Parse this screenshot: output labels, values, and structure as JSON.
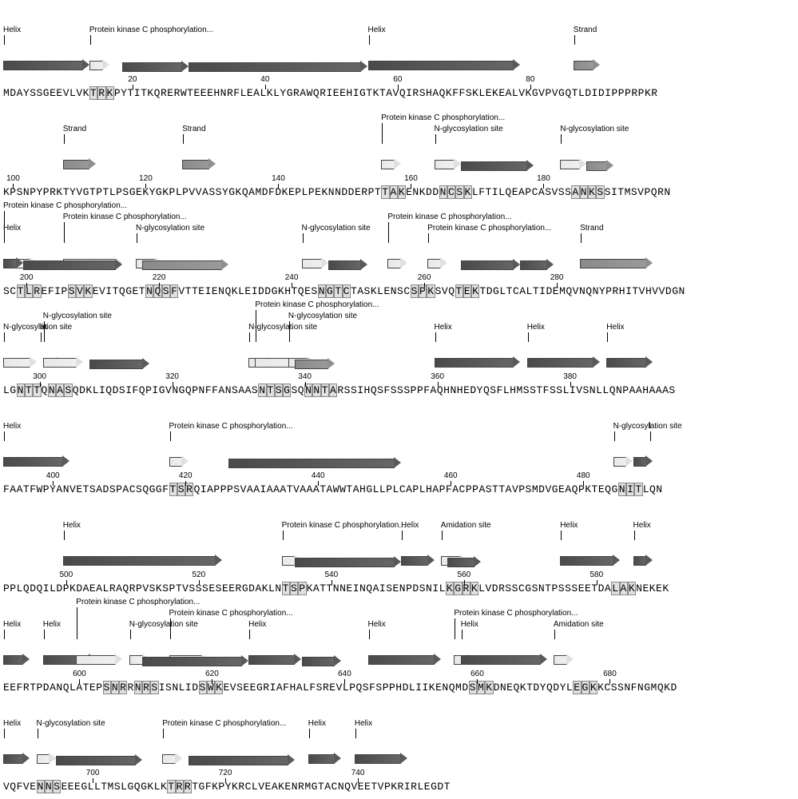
{
  "colors": {
    "dark": "#595959",
    "med": "#8f8f8f",
    "light": "#e0e0e0",
    "bg": "#ffffff"
  },
  "char_width": 8.3,
  "rows": [
    {
      "start": 1,
      "sequence": "MDAYSSGEEVLVKTRKPYTITKQRERWTEEEHNRFLEALKLYGRAWQRIEEHIGTKTAVQIRSHAQKFFSKLEKEALVKGVPVGQTLDIDIPPPRPKR",
      "highlights": [
        {
          "from": 14,
          "to": 16
        }
      ],
      "ticks": [
        20,
        40,
        60,
        80
      ],
      "annotations": [
        {
          "type": "Helix",
          "from": 1,
          "to": 13,
          "arrow": "dark",
          "label": "Helix",
          "level": 0
        },
        {
          "type": "PKC",
          "from": 14,
          "to": 16,
          "arrow": "light",
          "label": "Protein kinase C phosphorylation...",
          "level": 0
        },
        {
          "type": "Helix",
          "from": 19,
          "to": 28,
          "arrow": "dark",
          "label": "",
          "level": 1
        },
        {
          "type": "Helix",
          "from": 29,
          "to": 55,
          "arrow": "dark",
          "label": "",
          "level": 1
        },
        {
          "type": "Helix",
          "from": 56,
          "to": 78,
          "arrow": "dark",
          "label": "Helix",
          "level": 0
        },
        {
          "type": "Strand",
          "from": 87,
          "to": 90,
          "arrow": "med",
          "label": "Strand",
          "level": 0
        }
      ]
    },
    {
      "start": 99,
      "sequence": "KPSNPYPRKTYVGTPTLPSGEKYGKPLPVVASSYGKQAMDFDKEPLPEKNNDDERPTTAKENKDDNCSKLFTILQEAPCASVSSANKSSITMSVPQRN",
      "highlights": [
        {
          "from": 156,
          "to": 158
        },
        {
          "from": 164,
          "to": 167
        },
        {
          "from": 183,
          "to": 186
        }
      ],
      "ticks": [
        100,
        120,
        140,
        160,
        180
      ],
      "annotations": [
        {
          "type": "Strand",
          "from": 108,
          "to": 112,
          "arrow": "med",
          "label": "Strand",
          "level": 0
        },
        {
          "type": "Strand",
          "from": 126,
          "to": 130,
          "arrow": "med",
          "label": "Strand",
          "level": 0
        },
        {
          "type": "PKC",
          "from": 156,
          "to": 158,
          "arrow": "light",
          "label": "Protein kinase C phosphorylation...",
          "level": -1
        },
        {
          "type": "Nglyc",
          "from": 164,
          "to": 167,
          "arrow": "light",
          "label": "N-glycosylation site",
          "level": 0
        },
        {
          "type": "Helix",
          "from": 168,
          "to": 178,
          "arrow": "dark",
          "label": "",
          "level": 1
        },
        {
          "type": "Nglyc",
          "from": 183,
          "to": 186,
          "arrow": "light",
          "label": "N-glycosylation site",
          "level": 0
        },
        {
          "type": "Strand",
          "from": 187,
          "to": 190,
          "arrow": "med",
          "label": "",
          "level": 1
        }
      ]
    },
    {
      "start": 197,
      "sequence": "SCTLREFIPSVKEVITQGETNQSFVTTEIENQKLEIDDGKHTQESNGTCTASKLENSCSPKSVQTEKTDGLTCALTIDEMQVNQNYPRHITVHVVDGN",
      "highlights": [
        {
          "from": 199,
          "to": 201
        },
        {
          "from": 206,
          "to": 208
        },
        {
          "from": 217,
          "to": 220
        },
        {
          "from": 242,
          "to": 245
        },
        {
          "from": 255,
          "to": 257
        },
        {
          "from": 261,
          "to": 263
        }
      ],
      "ticks": [
        200,
        220,
        240,
        260,
        280
      ],
      "annotations": [
        {
          "type": "PKC",
          "from": 197,
          "to": 201,
          "arrow": "light",
          "label": "Protein kinase C phosphorylation...",
          "level": -2
        },
        {
          "type": "Helix",
          "from": 197,
          "to": 199,
          "arrow": "dark",
          "label": "Helix",
          "level": 0
        },
        {
          "type": "PKC",
          "from": 206,
          "to": 214,
          "arrow": "light",
          "label": "Protein kinase C phosphorylation...",
          "level": -1
        },
        {
          "type": "Helix",
          "from": 200,
          "to": 214,
          "arrow": "dark",
          "label": "",
          "level": 1
        },
        {
          "type": "Nglyc",
          "from": 217,
          "to": 220,
          "arrow": "light",
          "label": "N-glycosylation site",
          "level": 0
        },
        {
          "type": "Helix",
          "from": 218,
          "to": 230,
          "arrow": "med",
          "label": "",
          "level": 1
        },
        {
          "type": "Nglyc",
          "from": 242,
          "to": 245,
          "arrow": "light",
          "label": "N-glycosylation site",
          "level": 0
        },
        {
          "type": "Helix",
          "from": 246,
          "to": 251,
          "arrow": "dark",
          "label": "",
          "level": 1
        },
        {
          "type": "PKC",
          "from": 255,
          "to": 257,
          "arrow": "light",
          "label": "Protein kinase C phosphorylation...",
          "level": -1
        },
        {
          "type": "PKC",
          "from": 261,
          "to": 263,
          "arrow": "light",
          "label": "Protein kinase C phosphorylation...",
          "level": 0
        },
        {
          "type": "Helix",
          "from": 266,
          "to": 274,
          "arrow": "dark",
          "label": "",
          "level": 1
        },
        {
          "type": "Helix",
          "from": 275,
          "to": 279,
          "arrow": "dark",
          "label": "",
          "level": 1
        },
        {
          "type": "Strand",
          "from": 284,
          "to": 294,
          "arrow": "med",
          "label": "Strand",
          "level": 0
        }
      ]
    },
    {
      "start": 295,
      "sequence": "LGNTTQNASQDKLIQDSIFQPIGVNGQPNFFANSAASNTSGSQNNTARSSIHQSFSSSPPFAQHNHEDYQSFLHMSSTFSSLIVSNLLQNPAAHAAAS",
      "highlights": [
        {
          "from": 297,
          "to": 299
        },
        {
          "from": 301,
          "to": 303
        },
        {
          "from": 332,
          "to": 335
        },
        {
          "from": 338,
          "to": 341
        }
      ],
      "ticks": [
        300,
        320,
        340,
        360,
        380
      ],
      "annotations": [
        {
          "type": "Nglyc",
          "from": 295,
          "to": 299,
          "arrow": "light",
          "label": "N-glycosylation site",
          "level": 0
        },
        {
          "type": "Nglyc",
          "from": 301,
          "to": 303,
          "arrow": "light",
          "label": "N-glycosylation site",
          "level": -1
        },
        {
          "type": "Helix",
          "from": 301,
          "to": 306,
          "arrow": "light",
          "label": "lix",
          "level": 0,
          "label_off": -4
        },
        {
          "type": "Helix",
          "from": 308,
          "to": 316,
          "arrow": "dark",
          "label": "",
          "level": 1
        },
        {
          "type": "Nglyc",
          "from": 332,
          "to": 335,
          "arrow": "light",
          "label": "N-glycosylation site",
          "level": 0
        },
        {
          "type": "PKC",
          "from": 333,
          "to": 341,
          "arrow": "light",
          "label": "Protein kinase C phosphorylation...",
          "level": -2
        },
        {
          "type": "Nglyc",
          "from": 338,
          "to": 341,
          "arrow": "light",
          "label": "N-glycosylation site",
          "level": -1
        },
        {
          "type": "Helix",
          "from": 339,
          "to": 344,
          "arrow": "med",
          "label": "",
          "level": 1
        },
        {
          "type": "Helix",
          "from": 360,
          "to": 372,
          "arrow": "dark",
          "label": "Helix",
          "level": 0
        },
        {
          "type": "Helix",
          "from": 374,
          "to": 384,
          "arrow": "dark",
          "label": "Helix",
          "level": 0
        },
        {
          "type": "Helix",
          "from": 386,
          "to": 392,
          "arrow": "dark",
          "label": "Helix",
          "level": 0
        }
      ]
    },
    {
      "start": 393,
      "sequence": "FAATFWPYANVETSADSPACSQGGFTSRQIAPPPSVAAIAAATVAAATAWWTAHGLLPLCAPLHAPFACPPASTTAVPSMDVGEAQPKTEQGNITLQN",
      "highlights": [
        {
          "from": 418,
          "to": 420
        },
        {
          "from": 485,
          "to": 487
        }
      ],
      "ticks": [
        400,
        420,
        440,
        460,
        480
      ],
      "annotations": [
        {
          "type": "Helix",
          "from": 393,
          "to": 402,
          "arrow": "dark",
          "label": "Helix",
          "level": 0
        },
        {
          "type": "PKC",
          "from": 418,
          "to": 420,
          "arrow": "light",
          "label": "Protein kinase C phosphorylation...",
          "level": 0
        },
        {
          "type": "Helix",
          "from": 427,
          "to": 452,
          "arrow": "dark",
          "label": "",
          "level": 1
        },
        {
          "type": "Nglyc",
          "from": 485,
          "to": 487,
          "arrow": "light",
          "label": "N-glycosylation site",
          "level": 0
        },
        {
          "type": "Helix",
          "from": 488,
          "to": 490,
          "arrow": "dark",
          "label": "l",
          "level": 0,
          "label_off": 20
        }
      ]
    },
    {
      "start": 491,
      "sequence": "PPLQDQILDPKDAEALRAQRPVSKSPTVSSSESEERGDAKLNTSPKATTNNEINQAISENPDSNILKGRKLVDRSSCGSNTPSSSEETDALAKNEKEK",
      "highlights": [
        {
          "from": 533,
          "to": 535
        },
        {
          "from": 557,
          "to": 560
        },
        {
          "from": 581,
          "to": 583
        }
      ],
      "ticks": [
        500,
        520,
        540,
        560,
        580
      ],
      "annotations": [
        {
          "type": "Helix",
          "from": 500,
          "to": 523,
          "arrow": "dark",
          "label": "Helix",
          "level": 0
        },
        {
          "type": "PKC",
          "from": 533,
          "to": 535,
          "arrow": "light",
          "label": "Protein kinase C phosphorylation...",
          "level": 0
        },
        {
          "type": "Helix",
          "from": 535,
          "to": 550,
          "arrow": "dark",
          "label": "",
          "level": 1
        },
        {
          "type": "Helix",
          "from": 551,
          "to": 555,
          "arrow": "dark",
          "label": "Helix",
          "level": 0
        },
        {
          "type": "Amid",
          "from": 557,
          "to": 560,
          "arrow": "light",
          "label": "Amidation site",
          "level": 0
        },
        {
          "type": "Helix",
          "from": 558,
          "to": 562,
          "arrow": "dark",
          "label": "",
          "level": 1
        },
        {
          "type": "Helix",
          "from": 575,
          "to": 583,
          "arrow": "dark",
          "label": "Helix",
          "level": 0
        },
        {
          "type": "Helix",
          "from": 586,
          "to": 588,
          "arrow": "dark",
          "label": "Helix",
          "level": 0
        }
      ]
    },
    {
      "start": 589,
      "sequence": "EEFRTPDANQLATEPSNRRNRSISNLIDSWKEVSEEGRIAFHALFSREVLPQSFSPPHDLIIKENQMDSMKDNEQKTDYQDYLEGKKCSSNFNGMQKD",
      "highlights": [
        {
          "from": 604,
          "to": 606
        },
        {
          "from": 608,
          "to": 610
        },
        {
          "from": 617,
          "to": 619
        },
        {
          "from": 657,
          "to": 659
        },
        {
          "from": 672,
          "to": 674
        }
      ],
      "ticks": [
        600,
        620,
        640,
        660,
        680
      ],
      "annotations": [
        {
          "type": "Helix",
          "from": 589,
          "to": 592,
          "arrow": "dark",
          "label": "Helix",
          "level": 0
        },
        {
          "type": "Helix",
          "from": 595,
          "to": 602,
          "arrow": "dark",
          "label": "Helix",
          "level": 0
        },
        {
          "type": "PKC",
          "from": 600,
          "to": 606,
          "arrow": "light",
          "label": "Protein kinase C phosphorylation...",
          "level": -2
        },
        {
          "type": "Nglyc",
          "from": 608,
          "to": 610,
          "arrow": "light",
          "label": "N-glycosylation site",
          "level": 0
        },
        {
          "type": "PKC",
          "from": 614,
          "to": 619,
          "arrow": "light",
          "label": "Protein kinase C phosphorylation...",
          "level": -1
        },
        {
          "type": "Helix",
          "from": 610,
          "to": 625,
          "arrow": "dark",
          "label": "",
          "level": 1
        },
        {
          "type": "Helix",
          "from": 626,
          "to": 633,
          "arrow": "dark",
          "label": "Helix",
          "level": 0
        },
        {
          "type": "Helix",
          "from": 634,
          "to": 639,
          "arrow": "dark",
          "label": "",
          "level": 1
        },
        {
          "type": "Helix",
          "from": 644,
          "to": 654,
          "arrow": "dark",
          "label": "Helix",
          "level": 0
        },
        {
          "type": "PKC",
          "from": 657,
          "to": 659,
          "arrow": "light",
          "label": "Protein kinase C phosphorylation...",
          "level": -1
        },
        {
          "type": "Helix",
          "from": 658,
          "to": 670,
          "arrow": "dark",
          "label": "Helix",
          "level": 0
        },
        {
          "type": "Amid",
          "from": 672,
          "to": 674,
          "arrow": "light",
          "label": "Amidation site",
          "level": 0
        }
      ]
    },
    {
      "start": 687,
      "sequence": "VQFVENNSEEEGLLTMSLGQGKLKTRRTGFKPYKRCLVEAKENRMGTACNQVEETVPKRIRLEGDT",
      "highlights": [
        {
          "from": 692,
          "to": 694
        },
        {
          "from": 711,
          "to": 713
        }
      ],
      "ticks": [
        700,
        720,
        740
      ],
      "annotations": [
        {
          "type": "Helix",
          "from": 687,
          "to": 690,
          "arrow": "dark",
          "label": "Helix",
          "level": 0
        },
        {
          "type": "Nglyc",
          "from": 692,
          "to": 694,
          "arrow": "light",
          "label": "N-glycosylation site",
          "level": 0
        },
        {
          "type": "Helix",
          "from": 695,
          "to": 707,
          "arrow": "dark",
          "label": "",
          "level": 1
        },
        {
          "type": "PKC",
          "from": 711,
          "to": 713,
          "arrow": "light",
          "label": "Protein kinase C phosphorylation...",
          "level": 0
        },
        {
          "type": "Helix",
          "from": 715,
          "to": 730,
          "arrow": "dark",
          "label": "",
          "level": 1
        },
        {
          "type": "Helix",
          "from": 733,
          "to": 737,
          "arrow": "dark",
          "label": "Helix",
          "level": 0
        },
        {
          "type": "Helix",
          "from": 740,
          "to": 747,
          "arrow": "dark",
          "label": "Helix",
          "level": 0
        }
      ]
    }
  ]
}
